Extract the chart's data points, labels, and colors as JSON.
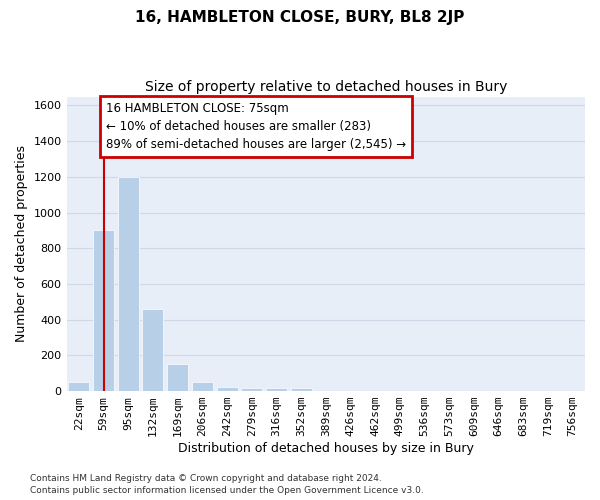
{
  "title": "16, HAMBLETON CLOSE, BURY, BL8 2JP",
  "subtitle": "Size of property relative to detached houses in Bury",
  "xlabel": "Distribution of detached houses by size in Bury",
  "ylabel": "Number of detached properties",
  "footer_line1": "Contains HM Land Registry data © Crown copyright and database right 2024.",
  "footer_line2": "Contains public sector information licensed under the Open Government Licence v3.0.",
  "categories": [
    "22sqm",
    "59sqm",
    "95sqm",
    "132sqm",
    "169sqm",
    "206sqm",
    "242sqm",
    "279sqm",
    "316sqm",
    "352sqm",
    "389sqm",
    "426sqm",
    "462sqm",
    "499sqm",
    "536sqm",
    "573sqm",
    "609sqm",
    "646sqm",
    "683sqm",
    "719sqm",
    "756sqm"
  ],
  "bar_values": [
    50,
    900,
    1200,
    460,
    150,
    50,
    25,
    15,
    15,
    15,
    0,
    0,
    0,
    0,
    0,
    0,
    0,
    0,
    0,
    0,
    0
  ],
  "bar_color": "#b8cfe8",
  "bar_edge_color": "#ffffff",
  "grid_color": "#d0d8e8",
  "background_color": "#e8eef8",
  "vline_x": 1,
  "vline_color": "#cc0000",
  "ylim": [
    0,
    1650
  ],
  "yticks": [
    0,
    200,
    400,
    600,
    800,
    1000,
    1200,
    1400,
    1600
  ],
  "annotation_line1": "16 HAMBLETON CLOSE: 75sqm",
  "annotation_line2": "← 10% of detached houses are smaller (283)",
  "annotation_line3": "89% of semi-detached houses are larger (2,545) →",
  "annotation_box_color": "#ffffff",
  "annotation_border_color": "#cc0000",
  "title_fontsize": 11,
  "subtitle_fontsize": 10,
  "axis_label_fontsize": 9,
  "tick_fontsize": 8,
  "annotation_fontsize": 8.5
}
